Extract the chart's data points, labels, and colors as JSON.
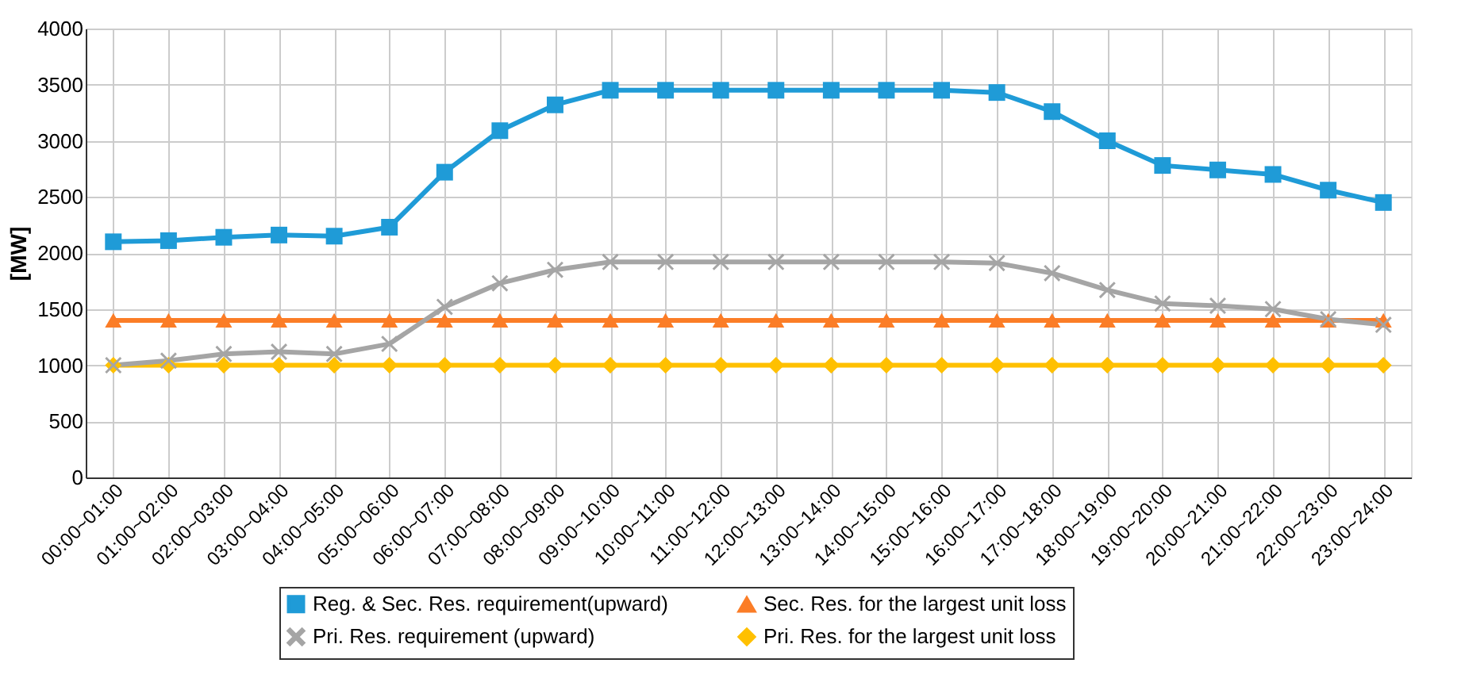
{
  "chart_data": {
    "type": "line",
    "ylabel": "[MW]",
    "categories": [
      "00:00~01:00",
      "01:00~02:00",
      "02:00~03:00",
      "03:00~04:00",
      "04:00~05:00",
      "05:00~06:00",
      "06:00~07:00",
      "07:00~08:00",
      "08:00~09:00",
      "09:00~10:00",
      "10:00~11:00",
      "11:00~12:00",
      "12:00~13:00",
      "13:00~14:00",
      "14:00~15:00",
      "15:00~16:00",
      "16:00~17:00",
      "17:00~18:00",
      "18:00~19:00",
      "19:00~20:00",
      "20:00~21:00",
      "21:00~22:00",
      "22:00~23:00",
      "23:00~24:00"
    ],
    "series": [
      {
        "name": "Reg. & Sec. Res. requirement(upward)",
        "color": "#1f9bd7",
        "marker": "square",
        "values": [
          2100,
          2110,
          2140,
          2160,
          2150,
          2230,
          2720,
          3090,
          3320,
          3450,
          3450,
          3450,
          3450,
          3450,
          3450,
          3450,
          3430,
          3260,
          3000,
          2780,
          2740,
          2700,
          2560,
          2450
        ]
      },
      {
        "name": "Pri. Res.  requirement (upward)",
        "color": "#a5a5a5",
        "marker": "cross",
        "values": [
          1000,
          1040,
          1100,
          1120,
          1100,
          1190,
          1520,
          1730,
          1850,
          1920,
          1920,
          1920,
          1920,
          1920,
          1920,
          1920,
          1910,
          1820,
          1670,
          1550,
          1530,
          1500,
          1410,
          1360
        ]
      },
      {
        "name": "Sec. Res. for the largest unit loss",
        "color": "#fb7d27",
        "marker": "triangle",
        "values": [
          1400,
          1400,
          1400,
          1400,
          1400,
          1400,
          1400,
          1400,
          1400,
          1400,
          1400,
          1400,
          1400,
          1400,
          1400,
          1400,
          1400,
          1400,
          1400,
          1400,
          1400,
          1400,
          1400,
          1400
        ]
      },
      {
        "name": "Pri. Res. for the largest unit loss",
        "color": "#ffc000",
        "marker": "diamond",
        "values": [
          1000,
          1000,
          1000,
          1000,
          1000,
          1000,
          1000,
          1000,
          1000,
          1000,
          1000,
          1000,
          1000,
          1000,
          1000,
          1000,
          1000,
          1000,
          1000,
          1000,
          1000,
          1000,
          1000,
          1000
        ]
      }
    ],
    "ylim": [
      0,
      4000
    ],
    "yticks": [
      0,
      500,
      1000,
      1500,
      2000,
      2500,
      3000,
      3500,
      4000
    ],
    "grid": true,
    "legend": "bottom",
    "line_style": "solid"
  }
}
